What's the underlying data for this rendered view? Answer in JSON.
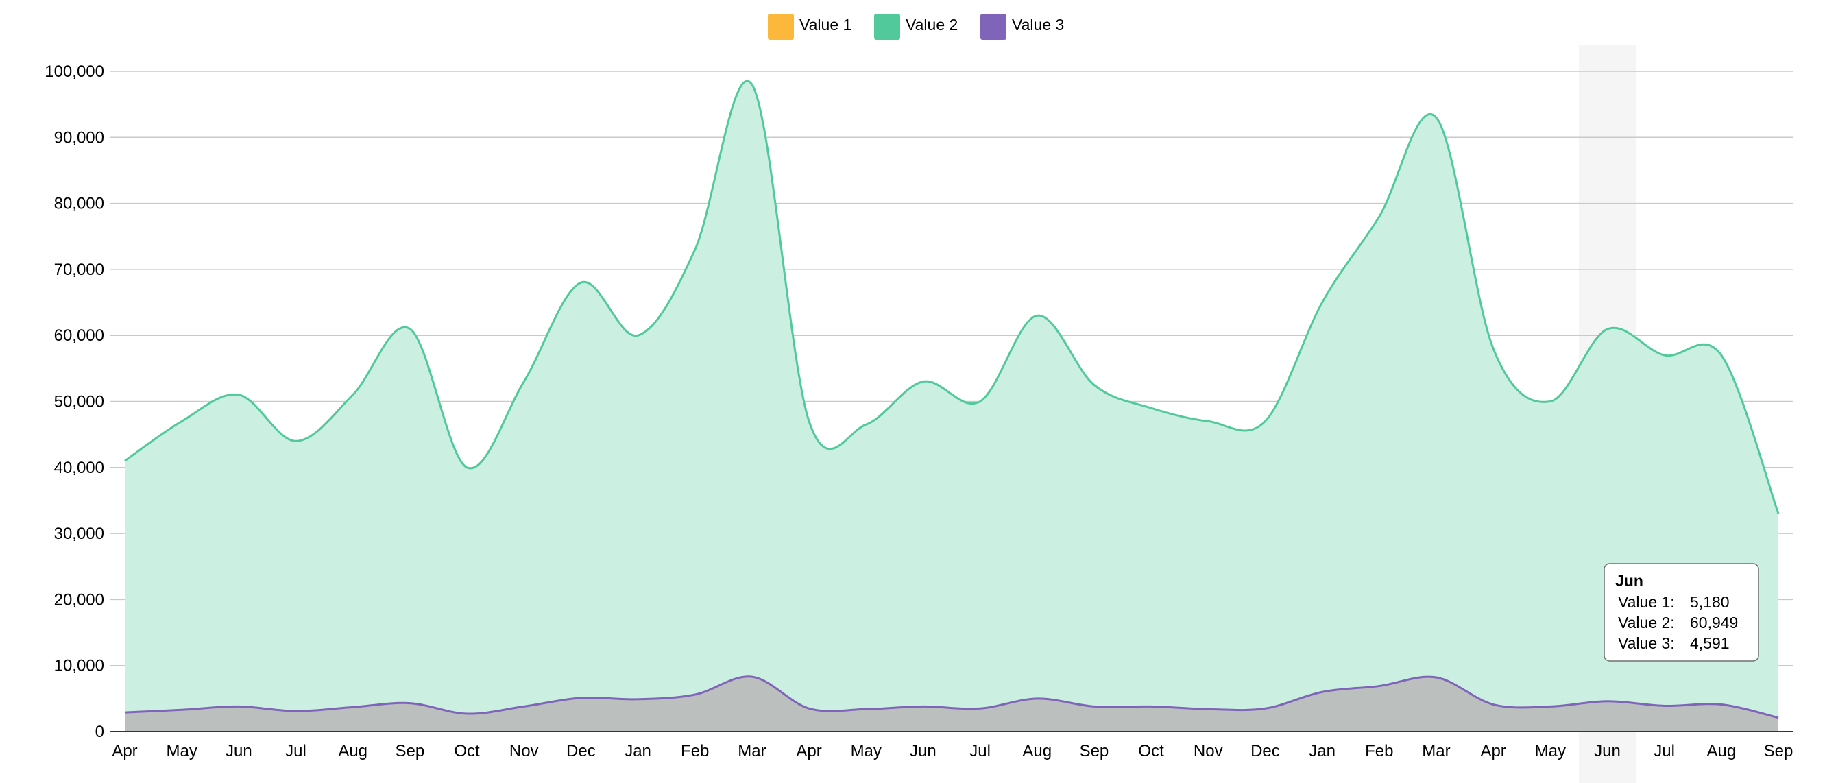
{
  "chart_data": {
    "type": "area",
    "categories": [
      "Apr",
      "May",
      "Jun",
      "Jul",
      "Aug",
      "Sep",
      "Oct",
      "Nov",
      "Dec",
      "Jan",
      "Feb",
      "Mar",
      "Apr",
      "May",
      "Jun",
      "Jul",
      "Aug",
      "Sep",
      "Oct",
      "Nov",
      "Dec",
      "Jan",
      "Feb",
      "Mar",
      "Apr",
      "May",
      "Jun",
      "Jul",
      "Aug",
      "Sep"
    ],
    "series": [
      {
        "name": "Value 1",
        "color": "#fbb83a",
        "values": [
          3400,
          3800,
          4300,
          3700,
          4300,
          4900,
          3400,
          4500,
          5800,
          5000,
          6000,
          8500,
          3900,
          4000,
          4400,
          4100,
          5500,
          4500,
          4400,
          4100,
          4100,
          5800,
          6600,
          8000,
          4400,
          4300,
          5180,
          4800,
          5200,
          3000
        ]
      },
      {
        "name": "Value 2",
        "color": "#52c99b",
        "values": [
          41000,
          47000,
          51000,
          44000,
          51000,
          61000,
          40000,
          53000,
          68000,
          60000,
          73000,
          98000,
          47000,
          46500,
          53000,
          50000,
          63000,
          52500,
          49000,
          47000,
          47000,
          65000,
          78000,
          93000,
          58000,
          50000,
          60949,
          57000,
          57000,
          33000
        ]
      },
      {
        "name": "Value 3",
        "color": "#8064ba",
        "values": [
          2900,
          3300,
          3800,
          3100,
          3700,
          4300,
          2700,
          3800,
          5100,
          4900,
          5600,
          8300,
          3500,
          3400,
          3800,
          3500,
          5000,
          3800,
          3800,
          3400,
          3500,
          6000,
          6900,
          8200,
          4100,
          3800,
          4591,
          3900,
          4100,
          2100
        ]
      }
    ],
    "ylim": [
      0,
      100000
    ],
    "yticks": [
      "0",
      "10,000",
      "20,000",
      "30,000",
      "40,000",
      "50,000",
      "60,000",
      "70,000",
      "80,000",
      "90,000",
      "100,000"
    ],
    "grid": true,
    "legend_position": "top-center",
    "highlighted_index": 26,
    "tooltip": {
      "title": "Jun",
      "rows": [
        {
          "label": "Value 1:",
          "value": "5,180"
        },
        {
          "label": "Value 2:",
          "value": "60,949"
        },
        {
          "label": "Value 3:",
          "value": "4,591"
        }
      ]
    }
  }
}
